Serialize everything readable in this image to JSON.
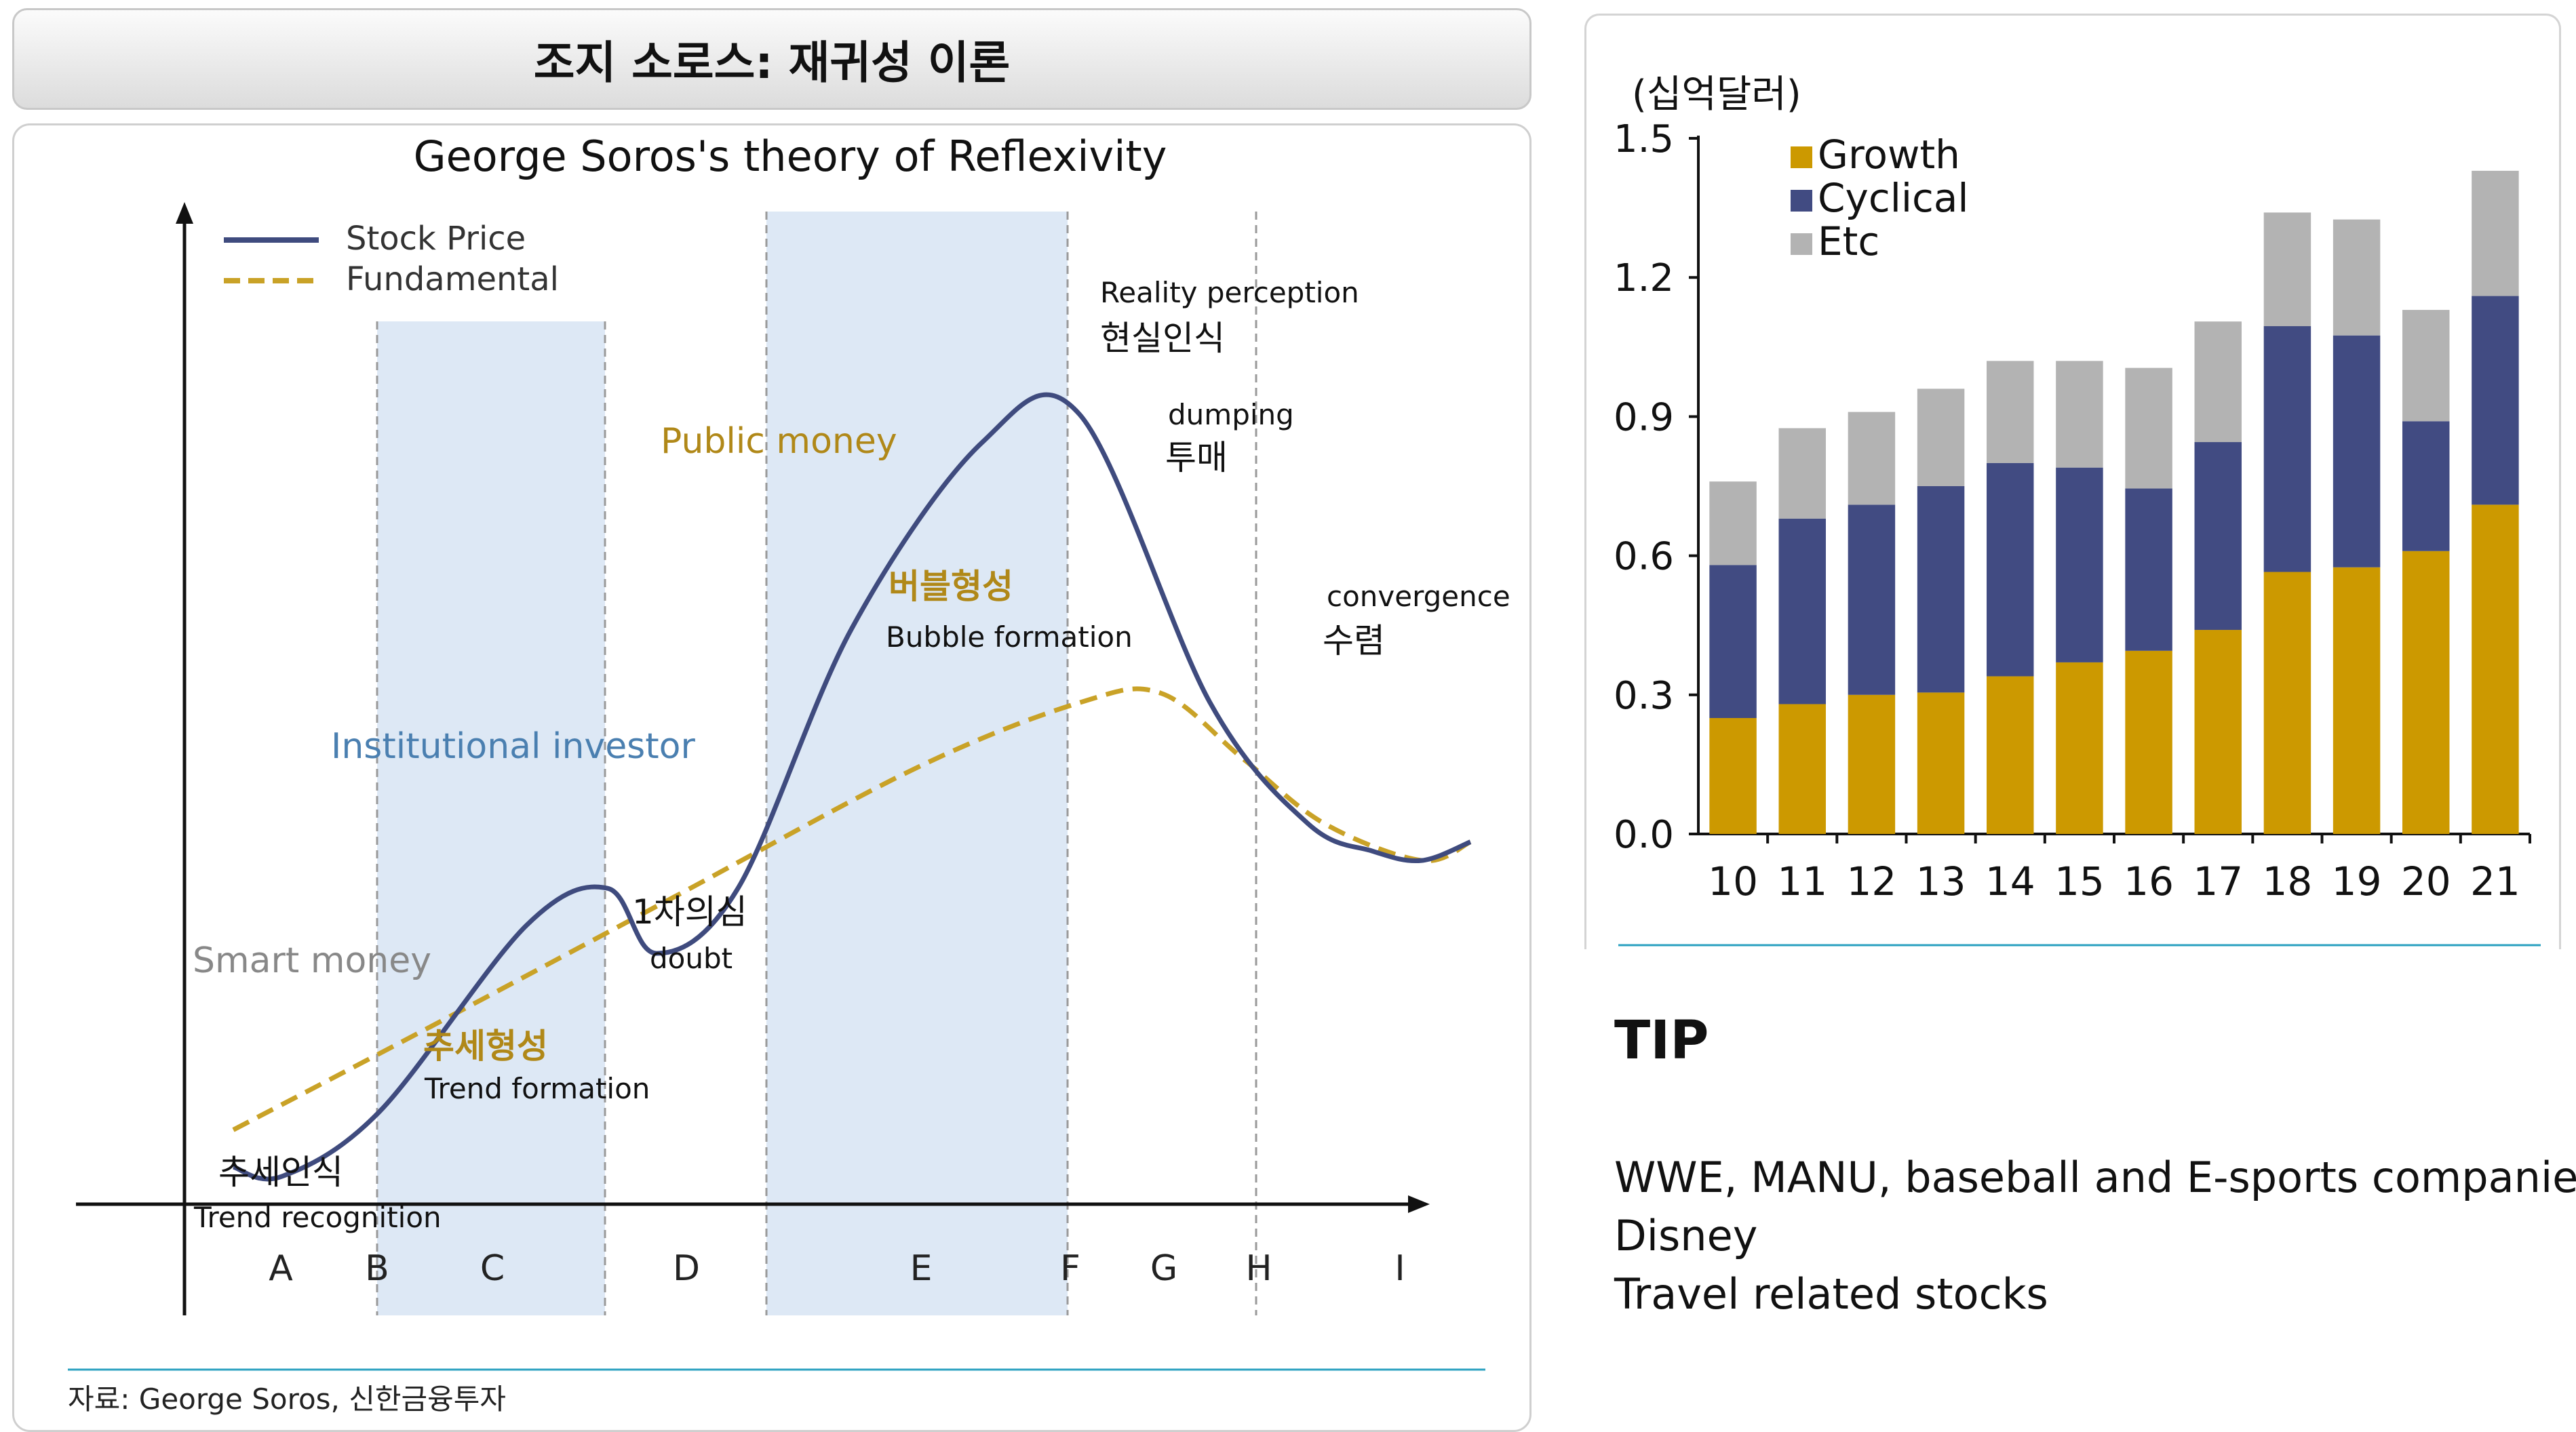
{
  "header": {
    "title": "조지 소로스: 재귀성 이론"
  },
  "chart_data": [
    {
      "type": "line",
      "title": "George Soros's theory of Reflexivity",
      "legend": [
        "Stock Price",
        "Fundamental"
      ],
      "x_phases": [
        "A",
        "B",
        "C",
        "D",
        "E",
        "F",
        "G",
        "H",
        "I"
      ],
      "series": [
        {
          "name": "Stock Price",
          "style": "solid",
          "color": "#3f4b7e",
          "x": [
            0.3,
            0.6,
            1.2,
            2.1,
            2.6,
            2.9,
            3.4,
            4.1,
            4.9,
            5.5,
            6.3,
            6.9,
            7.3,
            7.6,
            7.9
          ],
          "y": [
            0.4,
            0.3,
            1.0,
            3.0,
            3.4,
            2.7,
            3.4,
            6.2,
            8.2,
            8.5,
            5.4,
            4.1,
            3.8,
            3.7,
            3.9
          ]
        },
        {
          "name": "Fundamental",
          "style": "dashed",
          "color": "#c9a227",
          "x": [
            0.3,
            1.5,
            3.0,
            4.5,
            5.5,
            6.0,
            6.5,
            7.0,
            7.6,
            7.9
          ],
          "y": [
            0.8,
            1.9,
            3.3,
            4.7,
            5.4,
            5.5,
            4.8,
            4.1,
            3.7,
            3.9
          ]
        }
      ],
      "phase_labels": {
        "smart_money": "Smart money",
        "institutional": "Institutional investor",
        "public_money": "Public money",
        "trend_recognition_ko": "추세인식",
        "trend_recognition_en": "Trend recognition",
        "trend_formation_ko": "추세형성",
        "trend_formation_en": "Trend formation",
        "doubt_ko": "1차의심",
        "doubt_en": "doubt",
        "bubble_ko": "버블형성",
        "bubble_en": "Bubble formation",
        "reality_en": "Reality perception",
        "reality_ko": "현실인식",
        "dumping_en": "dumping",
        "dumping_ko": "투매",
        "convergence_en": "convergence",
        "convergence_ko": "수렴"
      },
      "source": "자료: George Soros, 신한금융투자"
    },
    {
      "type": "bar",
      "stacked": true,
      "ylabel": "(십억달러)",
      "ylim": [
        0,
        1.5
      ],
      "yticks": [
        "0.0",
        "0.3",
        "0.6",
        "0.9",
        "1.2",
        "1.5"
      ],
      "categories": [
        "10",
        "11",
        "12",
        "13",
        "14",
        "15",
        "16",
        "17",
        "18",
        "19",
        "20",
        "21"
      ],
      "series": [
        {
          "name": "Growth",
          "color": "#cc9900",
          "values": [
            0.25,
            0.28,
            0.3,
            0.305,
            0.34,
            0.37,
            0.395,
            0.44,
            0.565,
            0.575,
            0.61,
            0.71
          ]
        },
        {
          "name": "Cyclical",
          "color": "#414b82",
          "values": [
            0.33,
            0.4,
            0.41,
            0.445,
            0.46,
            0.42,
            0.35,
            0.405,
            0.53,
            0.5,
            0.28,
            0.45
          ]
        },
        {
          "name": "Etc",
          "color": "#b3b3b3",
          "values": [
            0.18,
            0.195,
            0.2,
            0.21,
            0.22,
            0.23,
            0.26,
            0.26,
            0.245,
            0.25,
            0.24,
            0.27
          ]
        }
      ]
    }
  ],
  "tip": {
    "heading": "TIP",
    "lines": [
      "WWE, MANU, baseball and E-sports companies",
      "Disney",
      "Travel related stocks"
    ]
  }
}
